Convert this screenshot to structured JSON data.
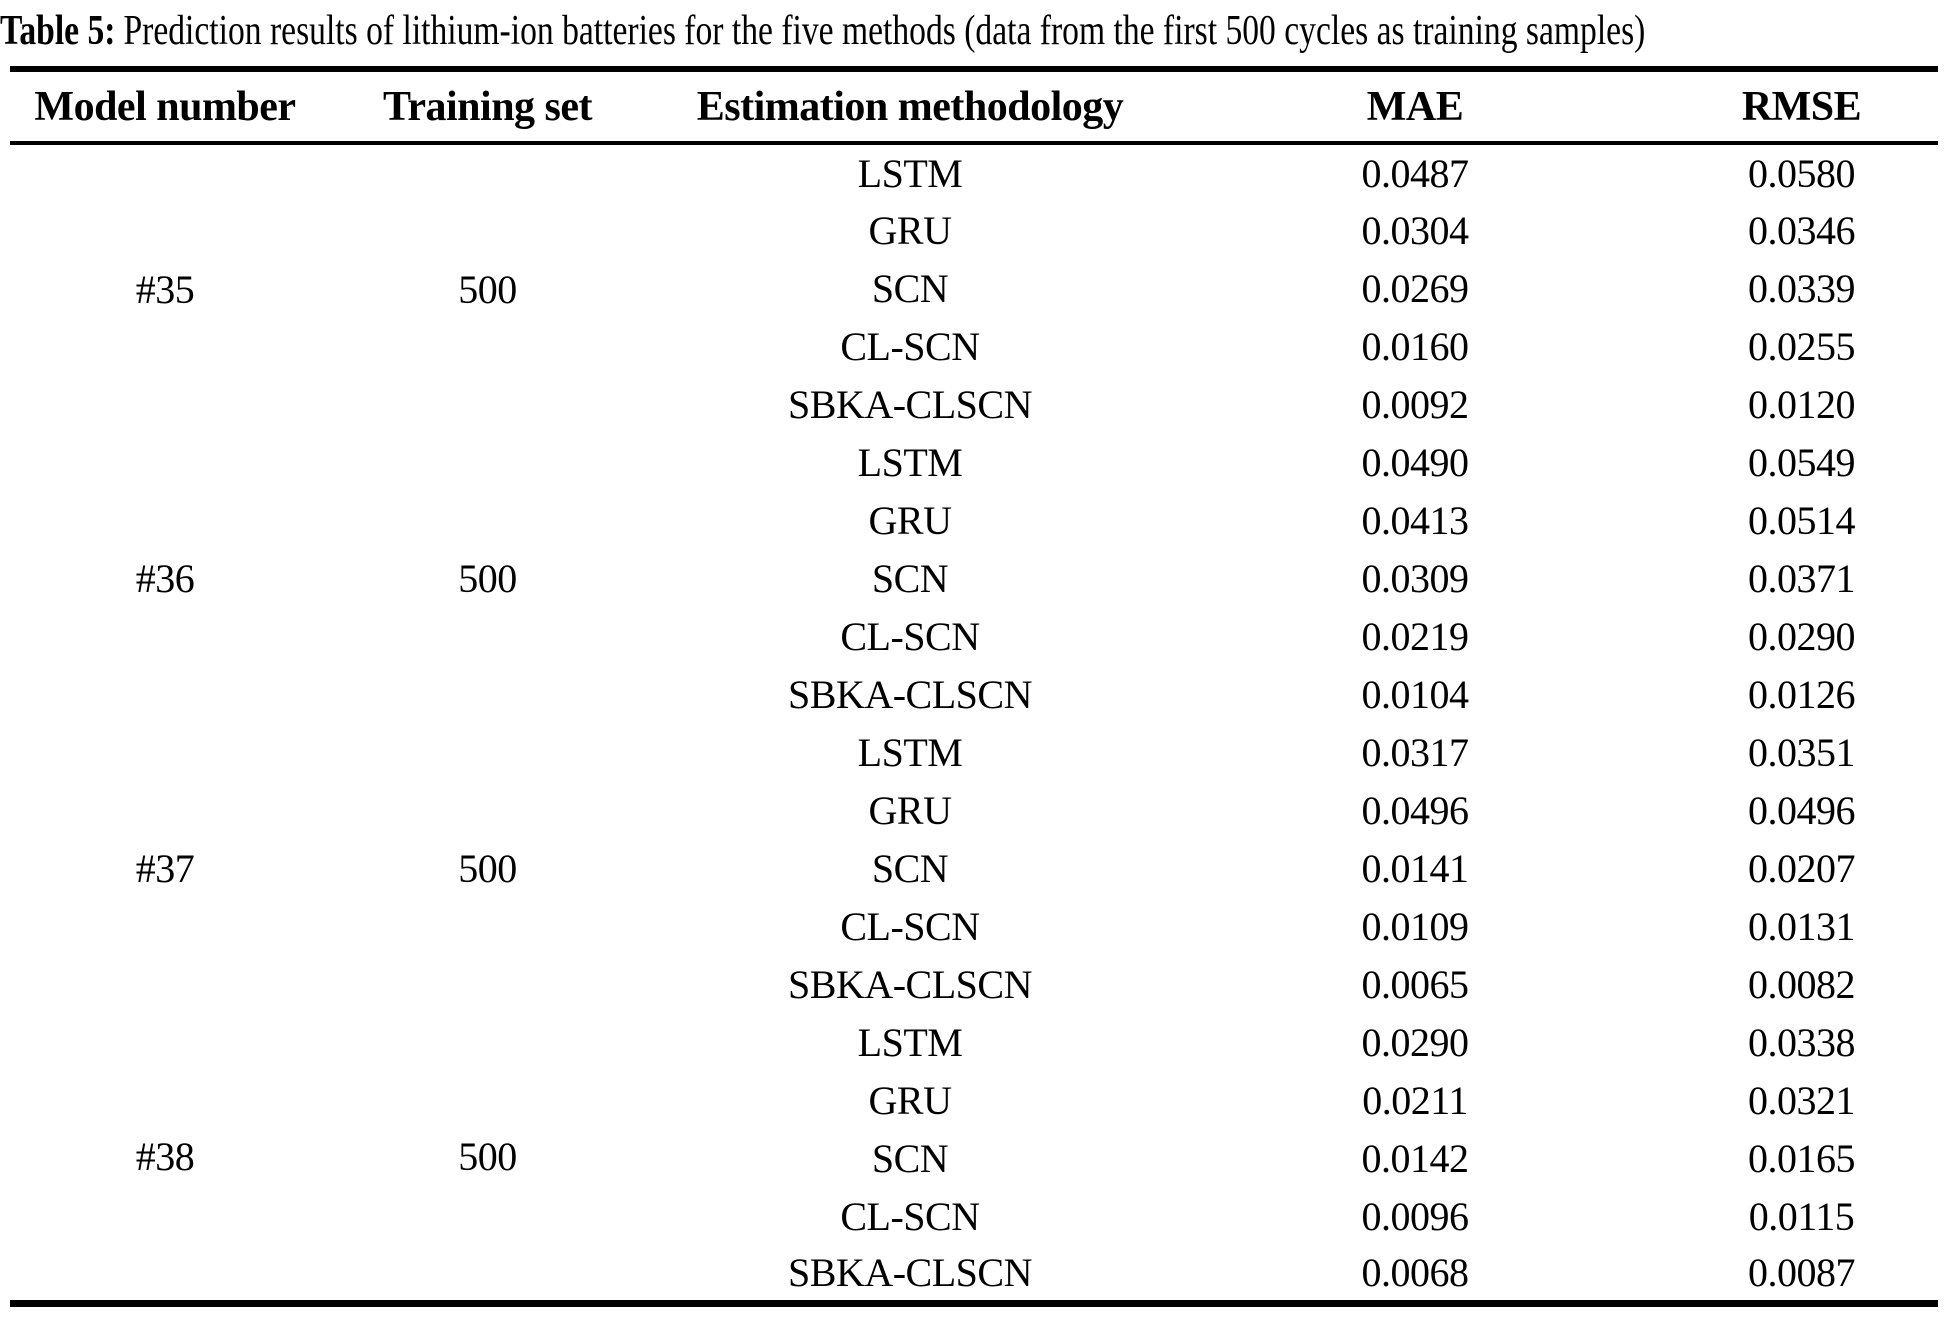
{
  "title": {
    "label": "Table 5:",
    "text": "Prediction results of lithium-ion batteries for the five methods (data from the first 500 cycles as training samples)"
  },
  "table": {
    "headers": [
      "Model number",
      "Training set",
      "Estimation methodology",
      "MAE",
      "RMSE"
    ],
    "groups": [
      {
        "model": "#35",
        "training_set": "500",
        "rows": [
          {
            "method": "LSTM",
            "mae": "0.0487",
            "rmse": "0.0580"
          },
          {
            "method": "GRU",
            "mae": "0.0304",
            "rmse": "0.0346"
          },
          {
            "method": "SCN",
            "mae": "0.0269",
            "rmse": "0.0339"
          },
          {
            "method": "CL-SCN",
            "mae": "0.0160",
            "rmse": "0.0255"
          },
          {
            "method": "SBKA-CLSCN",
            "mae": "0.0092",
            "rmse": "0.0120"
          }
        ]
      },
      {
        "model": "#36",
        "training_set": "500",
        "rows": [
          {
            "method": "LSTM",
            "mae": "0.0490",
            "rmse": "0.0549"
          },
          {
            "method": "GRU",
            "mae": "0.0413",
            "rmse": "0.0514"
          },
          {
            "method": "SCN",
            "mae": "0.0309",
            "rmse": "0.0371"
          },
          {
            "method": "CL-SCN",
            "mae": "0.0219",
            "rmse": "0.0290"
          },
          {
            "method": "SBKA-CLSCN",
            "mae": "0.0104",
            "rmse": "0.0126"
          }
        ]
      },
      {
        "model": "#37",
        "training_set": "500",
        "rows": [
          {
            "method": "LSTM",
            "mae": "0.0317",
            "rmse": "0.0351"
          },
          {
            "method": "GRU",
            "mae": "0.0496",
            "rmse": "0.0496"
          },
          {
            "method": "SCN",
            "mae": "0.0141",
            "rmse": "0.0207"
          },
          {
            "method": "CL-SCN",
            "mae": "0.0109",
            "rmse": "0.0131"
          },
          {
            "method": "SBKA-CLSCN",
            "mae": "0.0065",
            "rmse": "0.0082"
          }
        ]
      },
      {
        "model": "#38",
        "training_set": "500",
        "rows": [
          {
            "method": "LSTM",
            "mae": "0.0290",
            "rmse": "0.0338"
          },
          {
            "method": "GRU",
            "mae": "0.0211",
            "rmse": "0.0321"
          },
          {
            "method": "SCN",
            "mae": "0.0142",
            "rmse": "0.0165"
          },
          {
            "method": "CL-SCN",
            "mae": "0.0096",
            "rmse": "0.0115"
          },
          {
            "method": "SBKA-CLSCN",
            "mae": "0.0068",
            "rmse": "0.0087"
          }
        ]
      }
    ]
  }
}
